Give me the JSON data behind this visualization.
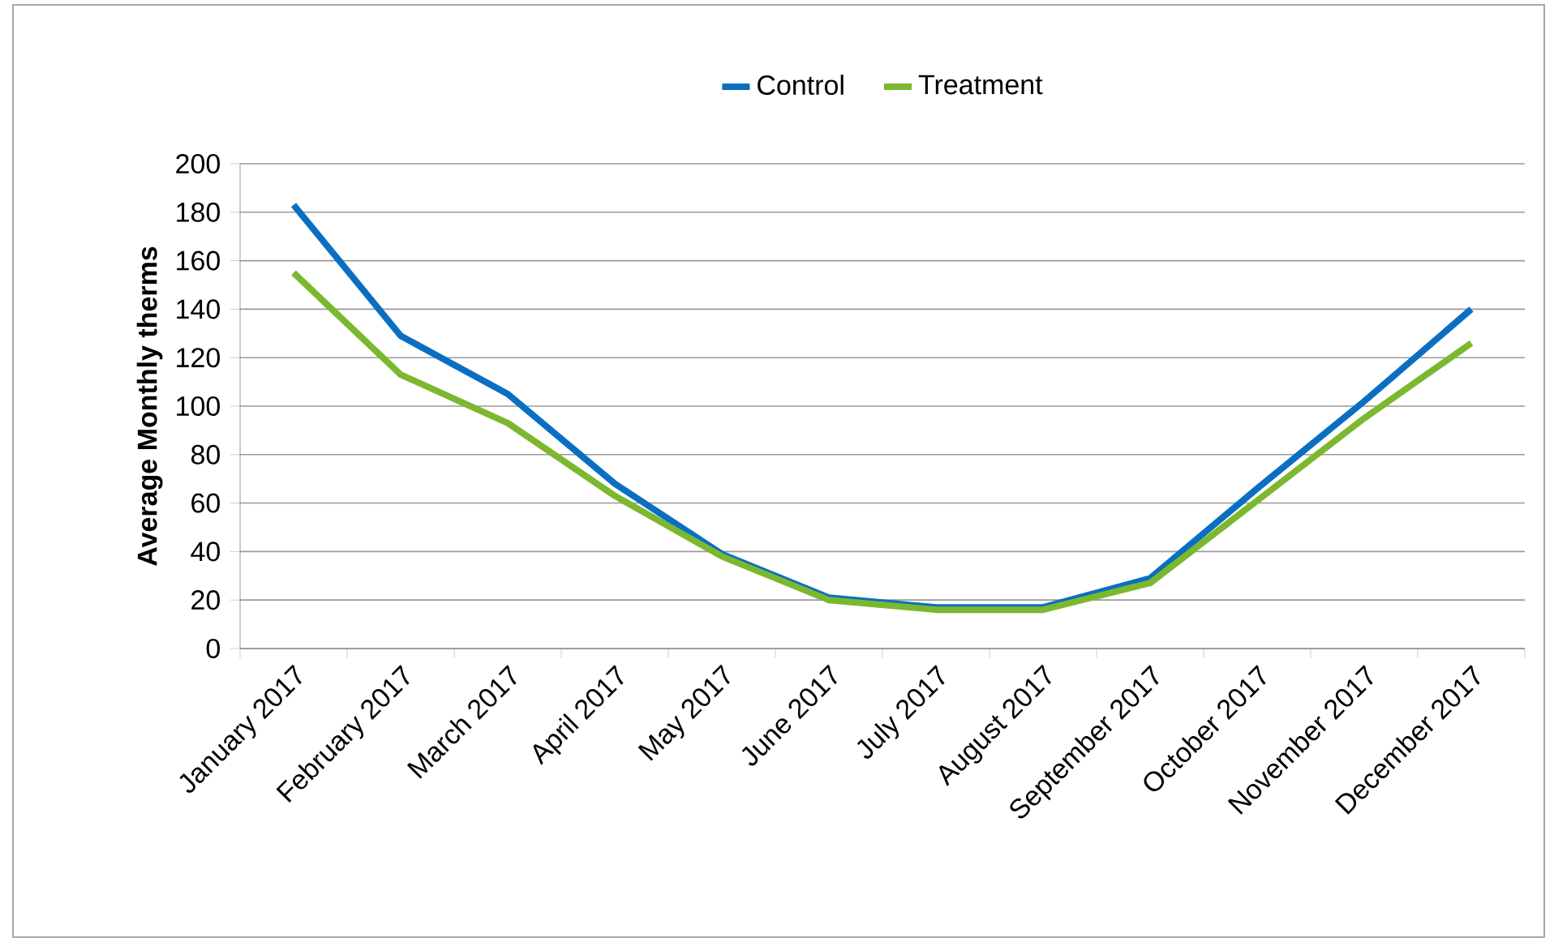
{
  "chart_data": {
    "type": "line",
    "ylabel": "Average Monthly therms",
    "categories": [
      "January 2017",
      "February 2017",
      "March 2017",
      "April 2017",
      "May 2017",
      "June 2017",
      "July 2017",
      "August 2017",
      "September 2017",
      "October 2017",
      "November 2017",
      "December 2017"
    ],
    "series": [
      {
        "name": "Control",
        "color": "#0a6fc2",
        "values": [
          183,
          129,
          105,
          68,
          39,
          21,
          17,
          17,
          29,
          66,
          102,
          140
        ]
      },
      {
        "name": "Treatment",
        "color": "#7cb82f",
        "values": [
          155,
          113,
          93,
          63,
          38,
          20,
          16,
          16,
          27,
          61,
          95,
          126
        ]
      }
    ],
    "ylim": [
      0,
      200
    ],
    "yticks": [
      0,
      20,
      40,
      60,
      80,
      100,
      120,
      140,
      160,
      180,
      200
    ],
    "grid": "y",
    "legend": "top",
    "marker": "none",
    "line_style": "solid"
  }
}
